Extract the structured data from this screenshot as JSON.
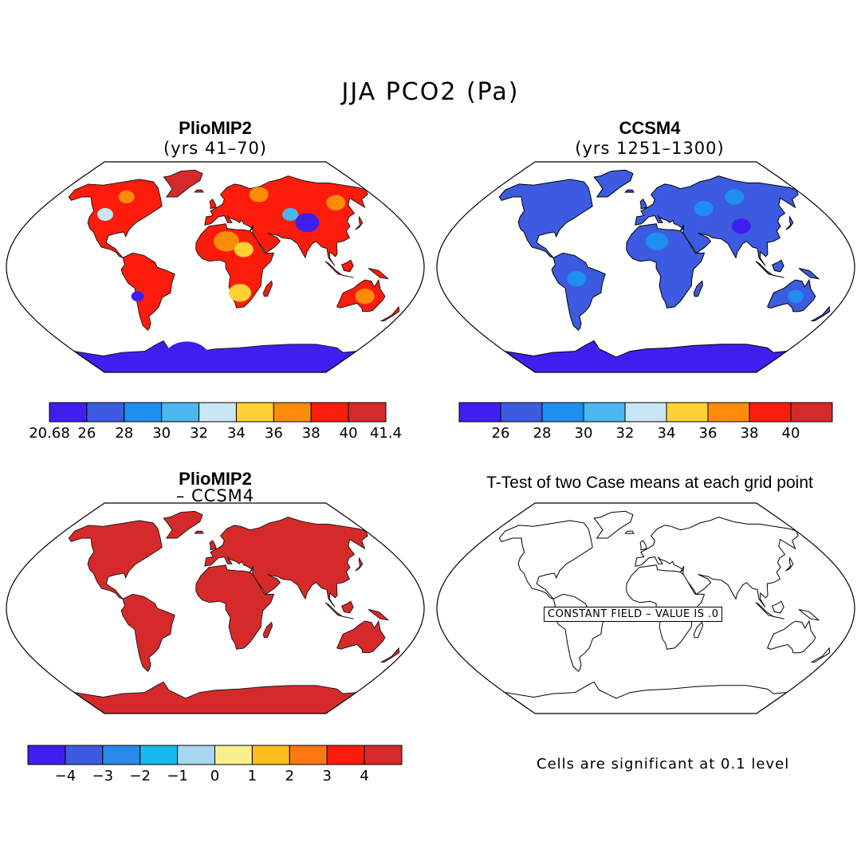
{
  "title": "JJA PCO2 (Pa)",
  "panels": {
    "top_left": {
      "title": "PlioMIP2",
      "subtitle": "(yrs 41–70)"
    },
    "top_right": {
      "title": "CCSM4",
      "subtitle": "(yrs 1251–1300)"
    },
    "bottom_left": {
      "title": "PlioMIP2",
      "subtitle": "– CCSM4"
    },
    "bottom_right": {
      "title": "T-Test of two Case means at each grid point",
      "constant_field": "CONSTANT FIELD – VALUE IS .0"
    }
  },
  "colorbars": {
    "abs_left": {
      "colors": [
        "#3f1ff0",
        "#3d5be0",
        "#1e8ff0",
        "#4cb6ee",
        "#c8e6f4",
        "#fdd232",
        "#fd8c0a",
        "#fd1c0c",
        "#d62a2a"
      ],
      "labels": [
        "20.68",
        "26",
        "28",
        "30",
        "32",
        "34",
        "36",
        "38",
        "40",
        "41.4"
      ]
    },
    "abs_right": {
      "colors": [
        "#3f1ff0",
        "#3d5be0",
        "#1e8ff0",
        "#4cb6ee",
        "#c8e6f4",
        "#fdd232",
        "#fd8c0a",
        "#fd1c0c",
        "#d62a2a"
      ],
      "labels": [
        "26",
        "28",
        "30",
        "32",
        "34",
        "36",
        "38",
        "40"
      ]
    },
    "diff": {
      "colors": [
        "#3f1ff0",
        "#3d5be0",
        "#2a8ae8",
        "#19b9ee",
        "#a8d6f0",
        "#f8f08a",
        "#fdbd1c",
        "#fd7812",
        "#fd1c0c",
        "#d62a2a"
      ],
      "labels": [
        "−4",
        "−3",
        "−2",
        "−1",
        "0",
        "1",
        "2",
        "3",
        "4"
      ]
    }
  },
  "footnote": "Cells are significant at 0.1 level"
}
